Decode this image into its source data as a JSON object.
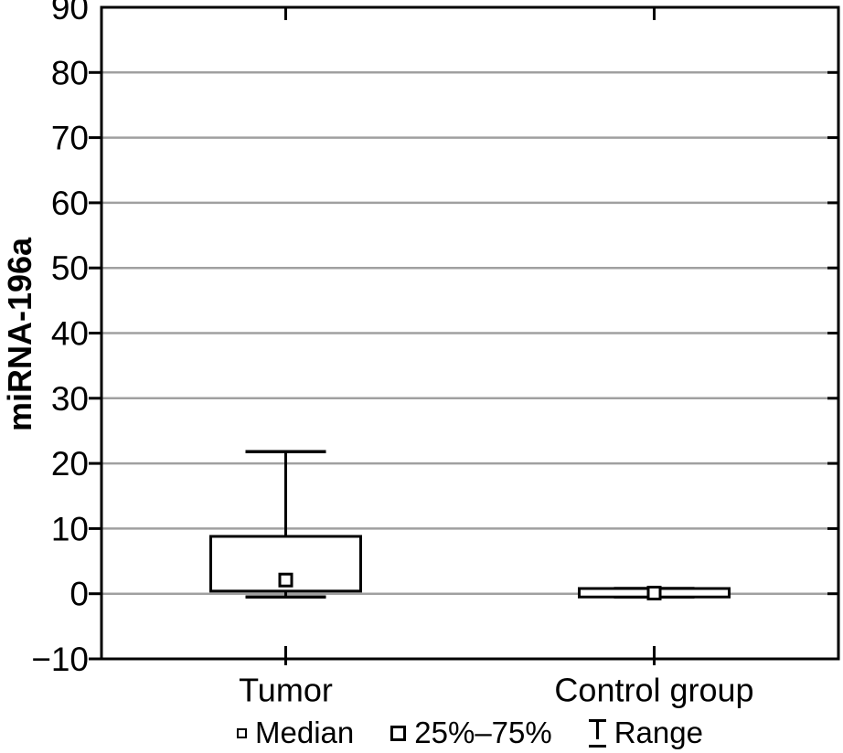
{
  "chart_data": {
    "type": "box",
    "title": "",
    "ylabel": "miRNA-196a",
    "xlabel": "",
    "categories": [
      "Tumor",
      "Control group"
    ],
    "ylim": [
      -10,
      90
    ],
    "yticks": [
      90,
      80,
      70,
      60,
      50,
      40,
      30,
      20,
      10,
      0,
      -10
    ],
    "grid": "horizontal",
    "legend_position": "bottom-center",
    "series": [
      {
        "category": "Tumor",
        "min": -0.5,
        "q1": 0.4,
        "median": 2.1,
        "q3": 8.8,
        "max": 21.8
      },
      {
        "category": "Control group",
        "min": -0.5,
        "q1": -0.5,
        "median": 0.1,
        "q3": 0.8,
        "max": 0.8
      }
    ],
    "legend": [
      {
        "symbol": "small-square",
        "label": "Median"
      },
      {
        "symbol": "large-square",
        "label": "25%–75%"
      },
      {
        "symbol": "range-ibeam",
        "label": "Range"
      }
    ],
    "colors": {
      "stroke": "#000000",
      "gridline": "#a0a0a0",
      "text": "#000000",
      "box_fill": "#ffffff",
      "background": "#ffffff"
    }
  }
}
